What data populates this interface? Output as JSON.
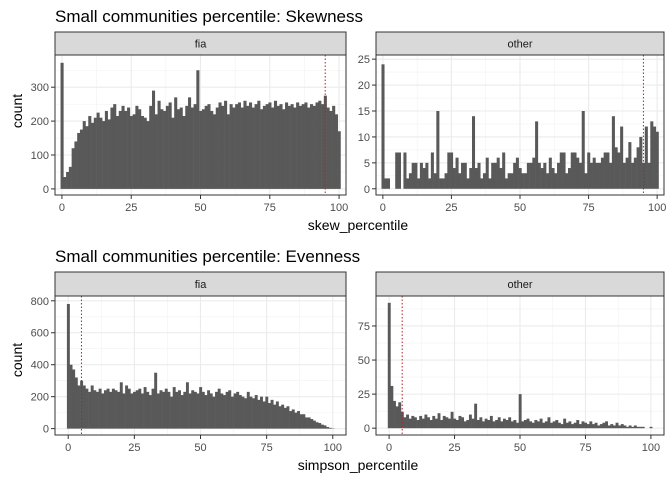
{
  "chart_data": [
    {
      "type": "bar",
      "title": "Small communities percentile: Skewness",
      "xlabel": "skew_percentile",
      "ylabel": "count",
      "grid": true,
      "bar_color": "#595959",
      "threshold_color": "#b22222",
      "facets": [
        {
          "label": "fia",
          "xlim": [
            -2.5,
            102.5
          ],
          "ylim": [
            -18,
            395
          ],
          "x_ticks": [
            0,
            25,
            50,
            75,
            100
          ],
          "y_ticks": [
            0,
            100,
            200,
            300
          ],
          "threshold": 95,
          "x": [
            0,
            1,
            2,
            3,
            4,
            5,
            6,
            7,
            8,
            9,
            10,
            11,
            12,
            13,
            14,
            15,
            16,
            17,
            18,
            19,
            20,
            21,
            22,
            23,
            24,
            25,
            26,
            27,
            28,
            29,
            30,
            31,
            32,
            33,
            34,
            35,
            36,
            37,
            38,
            39,
            40,
            41,
            42,
            43,
            44,
            45,
            46,
            47,
            48,
            49,
            50,
            51,
            52,
            53,
            54,
            55,
            56,
            57,
            58,
            59,
            60,
            61,
            62,
            63,
            64,
            65,
            66,
            67,
            68,
            69,
            70,
            71,
            72,
            73,
            74,
            75,
            76,
            77,
            78,
            79,
            80,
            81,
            82,
            83,
            84,
            85,
            86,
            87,
            88,
            89,
            90,
            91,
            92,
            93,
            94,
            95,
            96,
            97,
            98,
            99,
            100
          ],
          "values": [
            372,
            35,
            50,
            65,
            120,
            140,
            165,
            175,
            200,
            185,
            215,
            195,
            210,
            225,
            210,
            200,
            230,
            205,
            240,
            250,
            215,
            230,
            245,
            230,
            240,
            215,
            220,
            245,
            235,
            215,
            210,
            200,
            245,
            290,
            220,
            260,
            235,
            230,
            245,
            255,
            210,
            270,
            235,
            240,
            215,
            245,
            270,
            240,
            250,
            350,
            230,
            235,
            245,
            250,
            230,
            220,
            240,
            255,
            245,
            260,
            220,
            250,
            240,
            250,
            255,
            240,
            260,
            245,
            255,
            240,
            250,
            260,
            235,
            245,
            250,
            255,
            240,
            260,
            245,
            250,
            235,
            255,
            245,
            250,
            240,
            255,
            245,
            250,
            255,
            240,
            250,
            245,
            255,
            260,
            250,
            275,
            240,
            230,
            245,
            220,
            170
          ]
        },
        {
          "label": "other",
          "xlim": [
            -2.5,
            102.5
          ],
          "ylim": [
            -1.2,
            25.8
          ],
          "x_ticks": [
            0,
            25,
            50,
            75,
            100
          ],
          "y_ticks": [
            0,
            5,
            10,
            15,
            20,
            25
          ],
          "threshold": 95,
          "x": [
            0,
            1,
            2,
            3,
            4,
            5,
            6,
            7,
            8,
            9,
            10,
            11,
            12,
            13,
            14,
            15,
            16,
            17,
            18,
            19,
            20,
            21,
            22,
            23,
            24,
            25,
            26,
            27,
            28,
            29,
            30,
            31,
            32,
            33,
            34,
            35,
            36,
            37,
            38,
            39,
            40,
            41,
            42,
            43,
            44,
            45,
            46,
            47,
            48,
            49,
            50,
            51,
            52,
            53,
            54,
            55,
            56,
            57,
            58,
            59,
            60,
            61,
            62,
            63,
            64,
            65,
            66,
            67,
            68,
            69,
            70,
            71,
            72,
            73,
            74,
            75,
            76,
            77,
            78,
            79,
            80,
            81,
            82,
            83,
            84,
            85,
            86,
            87,
            88,
            89,
            90,
            91,
            92,
            93,
            94,
            95,
            96,
            97,
            98,
            99,
            100
          ],
          "values": [
            24,
            2,
            2,
            0,
            0,
            7,
            7,
            0,
            7,
            2,
            3,
            5,
            5,
            2,
            5,
            4,
            5,
            2,
            7,
            3,
            15,
            2,
            2,
            3,
            7,
            7,
            4,
            6,
            3,
            5,
            5,
            2,
            4,
            14,
            4,
            5,
            2,
            3,
            6,
            2,
            5,
            5,
            6,
            4,
            7,
            2,
            3,
            3,
            5,
            6,
            4,
            3,
            3,
            5,
            5,
            6,
            13,
            5,
            4,
            5,
            3,
            6,
            4,
            3,
            5,
            7,
            7,
            3,
            4,
            7,
            7,
            6,
            5,
            15,
            3,
            7,
            5,
            6,
            5,
            5,
            6,
            7,
            7,
            5,
            14,
            8,
            7,
            12,
            5,
            6,
            9,
            5,
            6,
            8,
            10,
            5,
            12,
            5,
            13,
            12,
            11
          ]
        }
      ]
    },
    {
      "type": "bar",
      "title": "Small communities percentile: Evenness",
      "xlabel": "simpson_percentile",
      "ylabel": "count",
      "grid": true,
      "bar_color": "#595959",
      "threshold_color": "#b22222",
      "facets": [
        {
          "label": "fia",
          "xlim": [
            -5,
            105
          ],
          "ylim": [
            -40,
            830
          ],
          "x_ticks": [
            0,
            25,
            50,
            75,
            100
          ],
          "y_ticks": [
            0,
            200,
            400,
            600,
            800
          ],
          "threshold": 5,
          "x": [
            0,
            1,
            2,
            3,
            4,
            5,
            6,
            7,
            8,
            9,
            10,
            11,
            12,
            13,
            14,
            15,
            16,
            17,
            18,
            19,
            20,
            21,
            22,
            23,
            24,
            25,
            26,
            27,
            28,
            29,
            30,
            31,
            32,
            33,
            34,
            35,
            36,
            37,
            38,
            39,
            40,
            41,
            42,
            43,
            44,
            45,
            46,
            47,
            48,
            49,
            50,
            51,
            52,
            53,
            54,
            55,
            56,
            57,
            58,
            59,
            60,
            61,
            62,
            63,
            64,
            65,
            66,
            67,
            68,
            69,
            70,
            71,
            72,
            73,
            74,
            75,
            76,
            77,
            78,
            79,
            80,
            81,
            82,
            83,
            84,
            85,
            86,
            87,
            88,
            89,
            90,
            91,
            92,
            93,
            94,
            95,
            96,
            97,
            98,
            99,
            100
          ],
          "values": [
            780,
            400,
            370,
            320,
            270,
            300,
            270,
            250,
            230,
            270,
            240,
            230,
            250,
            220,
            240,
            250,
            230,
            250,
            240,
            230,
            290,
            220,
            270,
            250,
            220,
            230,
            240,
            250,
            220,
            260,
            230,
            210,
            250,
            350,
            220,
            240,
            230,
            250,
            230,
            200,
            260,
            230,
            240,
            210,
            230,
            290,
            220,
            240,
            230,
            220,
            260,
            230,
            210,
            240,
            220,
            200,
            230,
            250,
            220,
            210,
            230,
            240,
            200,
            220,
            230,
            210,
            200,
            190,
            230,
            200,
            190,
            210,
            180,
            200,
            170,
            200,
            160,
            180,
            150,
            170,
            140,
            150,
            130,
            140,
            110,
            120,
            100,
            110,
            90,
            90,
            70,
            70,
            60,
            50,
            40,
            35,
            25,
            20,
            10,
            5,
            2
          ]
        },
        {
          "label": "other",
          "xlim": [
            -5,
            105
          ],
          "ylim": [
            -5,
            97
          ],
          "x_ticks": [
            0,
            25,
            50,
            75,
            100
          ],
          "y_ticks": [
            0,
            25,
            50,
            75
          ],
          "threshold": 5,
          "x": [
            0,
            1,
            2,
            3,
            4,
            5,
            6,
            7,
            8,
            9,
            10,
            11,
            12,
            13,
            14,
            15,
            16,
            17,
            18,
            19,
            20,
            21,
            22,
            23,
            24,
            25,
            26,
            27,
            28,
            29,
            30,
            31,
            32,
            33,
            34,
            35,
            36,
            37,
            38,
            39,
            40,
            41,
            42,
            43,
            44,
            45,
            46,
            47,
            48,
            49,
            50,
            51,
            52,
            53,
            54,
            55,
            56,
            57,
            58,
            59,
            60,
            61,
            62,
            63,
            64,
            65,
            66,
            67,
            68,
            69,
            70,
            71,
            72,
            73,
            74,
            75,
            76,
            77,
            78,
            79,
            80,
            81,
            82,
            83,
            84,
            85,
            86,
            87,
            88,
            89,
            90,
            91,
            92,
            93,
            94,
            95,
            96,
            97,
            98,
            99,
            100
          ],
          "values": [
            92,
            31,
            20,
            16,
            19,
            12,
            8,
            10,
            7,
            9,
            8,
            6,
            9,
            7,
            10,
            8,
            6,
            9,
            7,
            11,
            6,
            9,
            8,
            7,
            12,
            7,
            6,
            9,
            8,
            5,
            6,
            10,
            7,
            18,
            6,
            8,
            5,
            7,
            6,
            9,
            5,
            6,
            8,
            5,
            7,
            6,
            8,
            5,
            6,
            4,
            25,
            5,
            6,
            7,
            5,
            4,
            6,
            5,
            7,
            4,
            5,
            8,
            4,
            5,
            6,
            4,
            3,
            7,
            4,
            5,
            3,
            4,
            6,
            3,
            5,
            4,
            3,
            5,
            3,
            4,
            2,
            3,
            4,
            5,
            2,
            3,
            2,
            4,
            2,
            3,
            2,
            1,
            2,
            1,
            2,
            1,
            1,
            1,
            0,
            0,
            1
          ]
        }
      ]
    }
  ]
}
